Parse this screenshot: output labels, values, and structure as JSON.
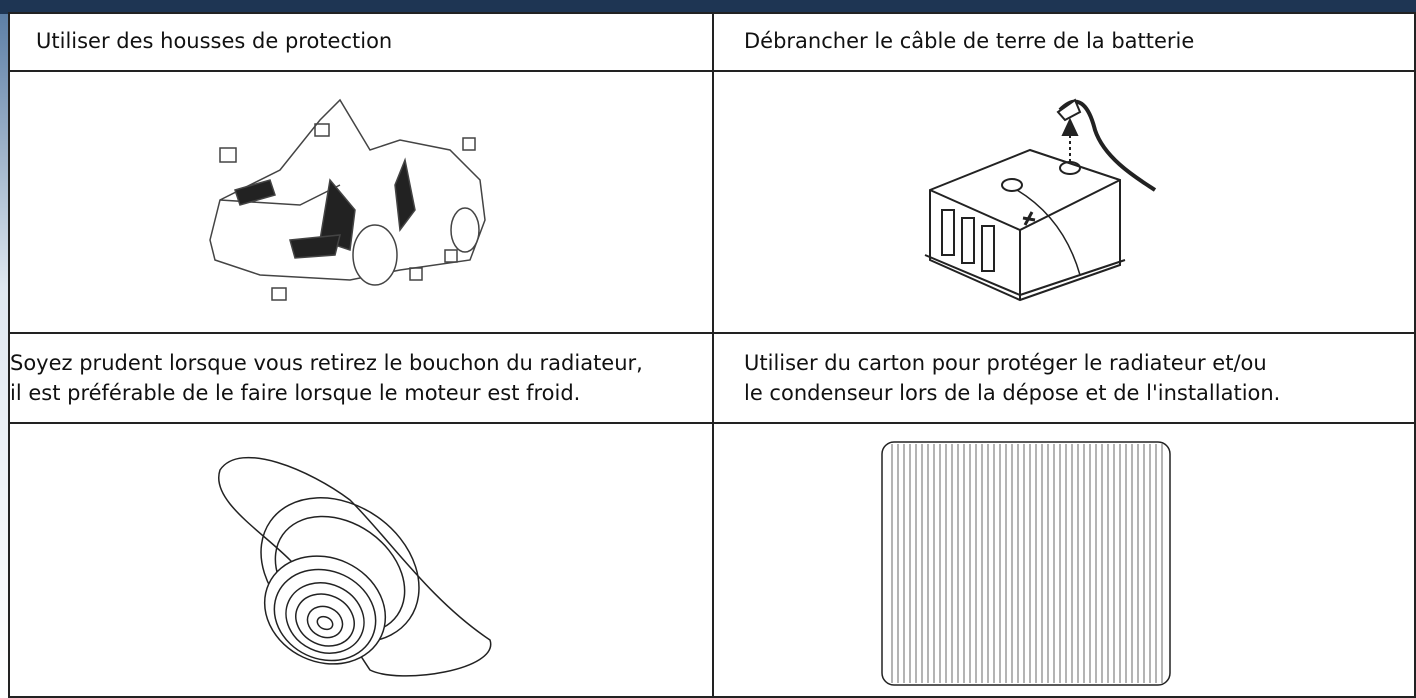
{
  "table": {
    "rows": [
      [
        "Utiliser des housses de protection",
        "Débrancher le câble de terre de la batterie"
      ],
      [
        [
          "Soyez prudent lorsque vous retirez le bouchon du radiateur,",
          "il est préférable de le faire lorsque le moteur est froid."
        ],
        [
          "Utiliser du carton pour protéger le radiateur et/ou",
          "le condenseur lors de la dépose et de l'installation."
        ]
      ]
    ]
  }
}
